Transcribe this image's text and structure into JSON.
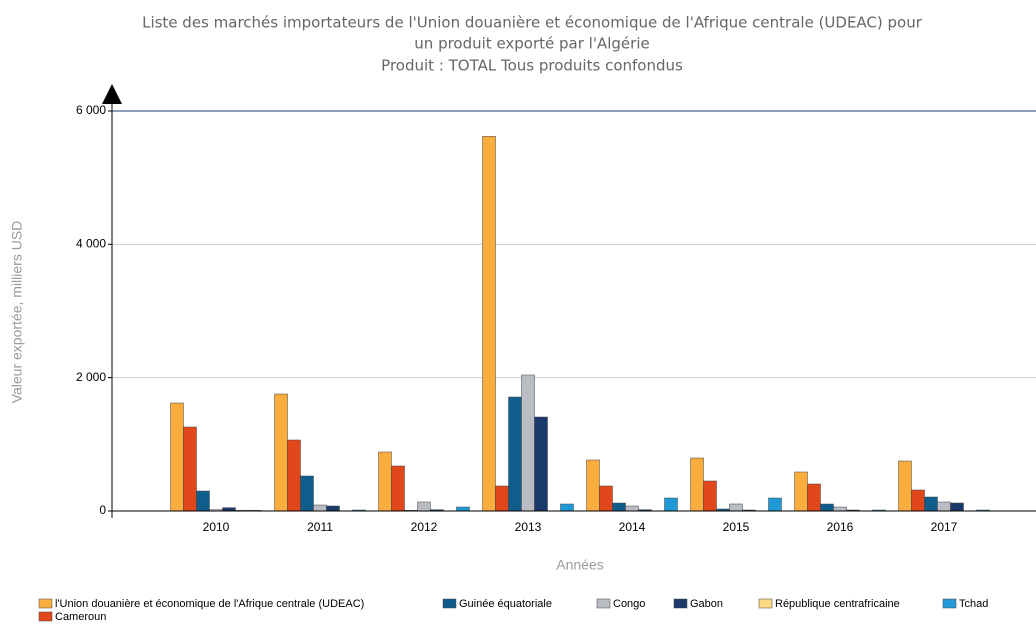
{
  "chart_data": {
    "type": "bar",
    "title": [
      "Liste des marchés importateurs de l'Union douanière et économique de l'Afrique centrale (UDEAC) pour",
      "un produit exporté par l'Algérie",
      "Produit : TOTAL Tous produits confondus"
    ],
    "x_label": "Années",
    "y_label": "Valeur exportée, milliers USD",
    "categories": [
      "2010",
      "2011",
      "2012",
      "2013",
      "2014",
      "2015",
      "2016",
      "2017"
    ],
    "series": [
      {
        "name": "l'Union douanière et économique de l'Afrique centrale (UDEAC)",
        "color": "#f9ad3c",
        "values": [
          1620,
          1755,
          885,
          5620,
          765,
          795,
          585,
          750
        ]
      },
      {
        "name": "Cameroun",
        "color": "#e2461b",
        "values": [
          1260,
          1065,
          675,
          375,
          375,
          450,
          405,
          315
        ]
      },
      {
        "name": "Guinée équatoriale",
        "color": "#0f5d8c",
        "values": [
          300,
          525,
          10,
          1710,
          120,
          30,
          105,
          210
        ]
      },
      {
        "name": "Congo",
        "color": "#b9bdc3",
        "values": [
          20,
          90,
          135,
          2040,
          75,
          105,
          60,
          135
        ]
      },
      {
        "name": "Gabon",
        "color": "#1b3a6c",
        "values": [
          50,
          75,
          20,
          1410,
          20,
          15,
          15,
          120
        ]
      },
      {
        "name": "République centrafricaine",
        "color": "#fcd884",
        "values": [
          10,
          0,
          0,
          0,
          0,
          0,
          0,
          0
        ]
      },
      {
        "name": "Tchad",
        "color": "#1f9ad6",
        "values": [
          10,
          15,
          60,
          105,
          195,
          195,
          15,
          15
        ]
      }
    ],
    "ylim": [
      0,
      6000
    ],
    "yticks": [
      {
        "value": 0,
        "label": "0"
      },
      {
        "value": 2000,
        "label": "2 000"
      },
      {
        "value": 4000,
        "label": "4 000"
      },
      {
        "value": 6000,
        "label": "6 000"
      }
    ],
    "grid": true,
    "legend": "bottom"
  }
}
